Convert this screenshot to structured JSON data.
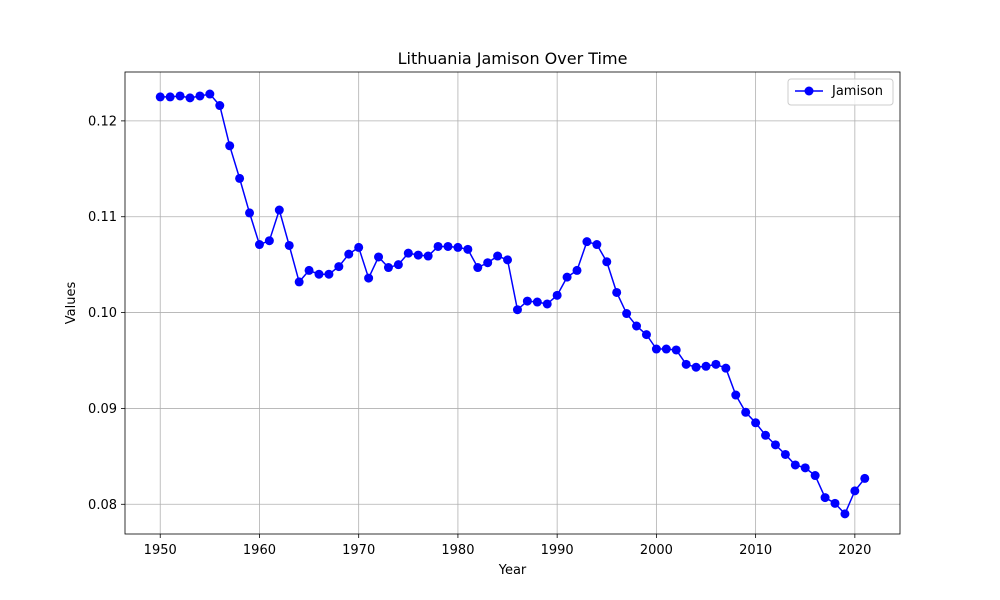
{
  "chart_data": {
    "type": "line",
    "title": "Lithuania Jamison Over Time",
    "xlabel": "Year",
    "ylabel": "Values",
    "xlim": [
      1946.45,
      2024.55
    ],
    "ylim": [
      0.0769,
      0.1251
    ],
    "xticks": [
      1950,
      1960,
      1970,
      1980,
      1990,
      2000,
      2010,
      2020
    ],
    "yticks": [
      0.08,
      0.09,
      0.1,
      0.11,
      0.12
    ],
    "ytick_labels": [
      "0.08",
      "0.09",
      "0.10",
      "0.11",
      "0.12"
    ],
    "grid": true,
    "legend_position": "top-right",
    "series": [
      {
        "name": "Jamison",
        "color": "#0000ff",
        "x": [
          1950,
          1951,
          1952,
          1953,
          1954,
          1955,
          1956,
          1957,
          1958,
          1959,
          1960,
          1961,
          1962,
          1963,
          1964,
          1965,
          1966,
          1967,
          1968,
          1969,
          1970,
          1971,
          1972,
          1973,
          1974,
          1975,
          1976,
          1977,
          1978,
          1979,
          1980,
          1981,
          1982,
          1983,
          1984,
          1985,
          1986,
          1987,
          1988,
          1989,
          1990,
          1991,
          1992,
          1993,
          1994,
          1995,
          1996,
          1997,
          1998,
          1999,
          2000,
          2001,
          2002,
          2003,
          2004,
          2005,
          2006,
          2007,
          2008,
          2009,
          2010,
          2011,
          2012,
          2013,
          2014,
          2015,
          2016,
          2017,
          2018,
          2019,
          2020,
          2021
        ],
        "y": [
          0.1225,
          0.1225,
          0.1226,
          0.1224,
          0.1226,
          0.1228,
          0.1216,
          0.1174,
          0.114,
          0.1104,
          0.1071,
          0.1075,
          0.1107,
          0.107,
          0.1032,
          0.1044,
          0.104,
          0.104,
          0.1048,
          0.1061,
          0.1068,
          0.1036,
          0.1058,
          0.1047,
          0.105,
          0.1062,
          0.106,
          0.1059,
          0.1069,
          0.1069,
          0.1068,
          0.1066,
          0.1047,
          0.1052,
          0.1059,
          0.1055,
          0.1003,
          0.1012,
          0.1011,
          0.1009,
          0.1018,
          0.1037,
          0.1044,
          0.1074,
          0.1071,
          0.1053,
          0.1021,
          0.0999,
          0.0986,
          0.0977,
          0.0962,
          0.0962,
          0.0961,
          0.0946,
          0.0943,
          0.0944,
          0.0946,
          0.0942,
          0.0914,
          0.0896,
          0.0885,
          0.0872,
          0.0862,
          0.0852,
          0.0841,
          0.0838,
          0.083,
          0.0807,
          0.0801,
          0.079,
          0.0814,
          0.0827
        ]
      }
    ]
  }
}
